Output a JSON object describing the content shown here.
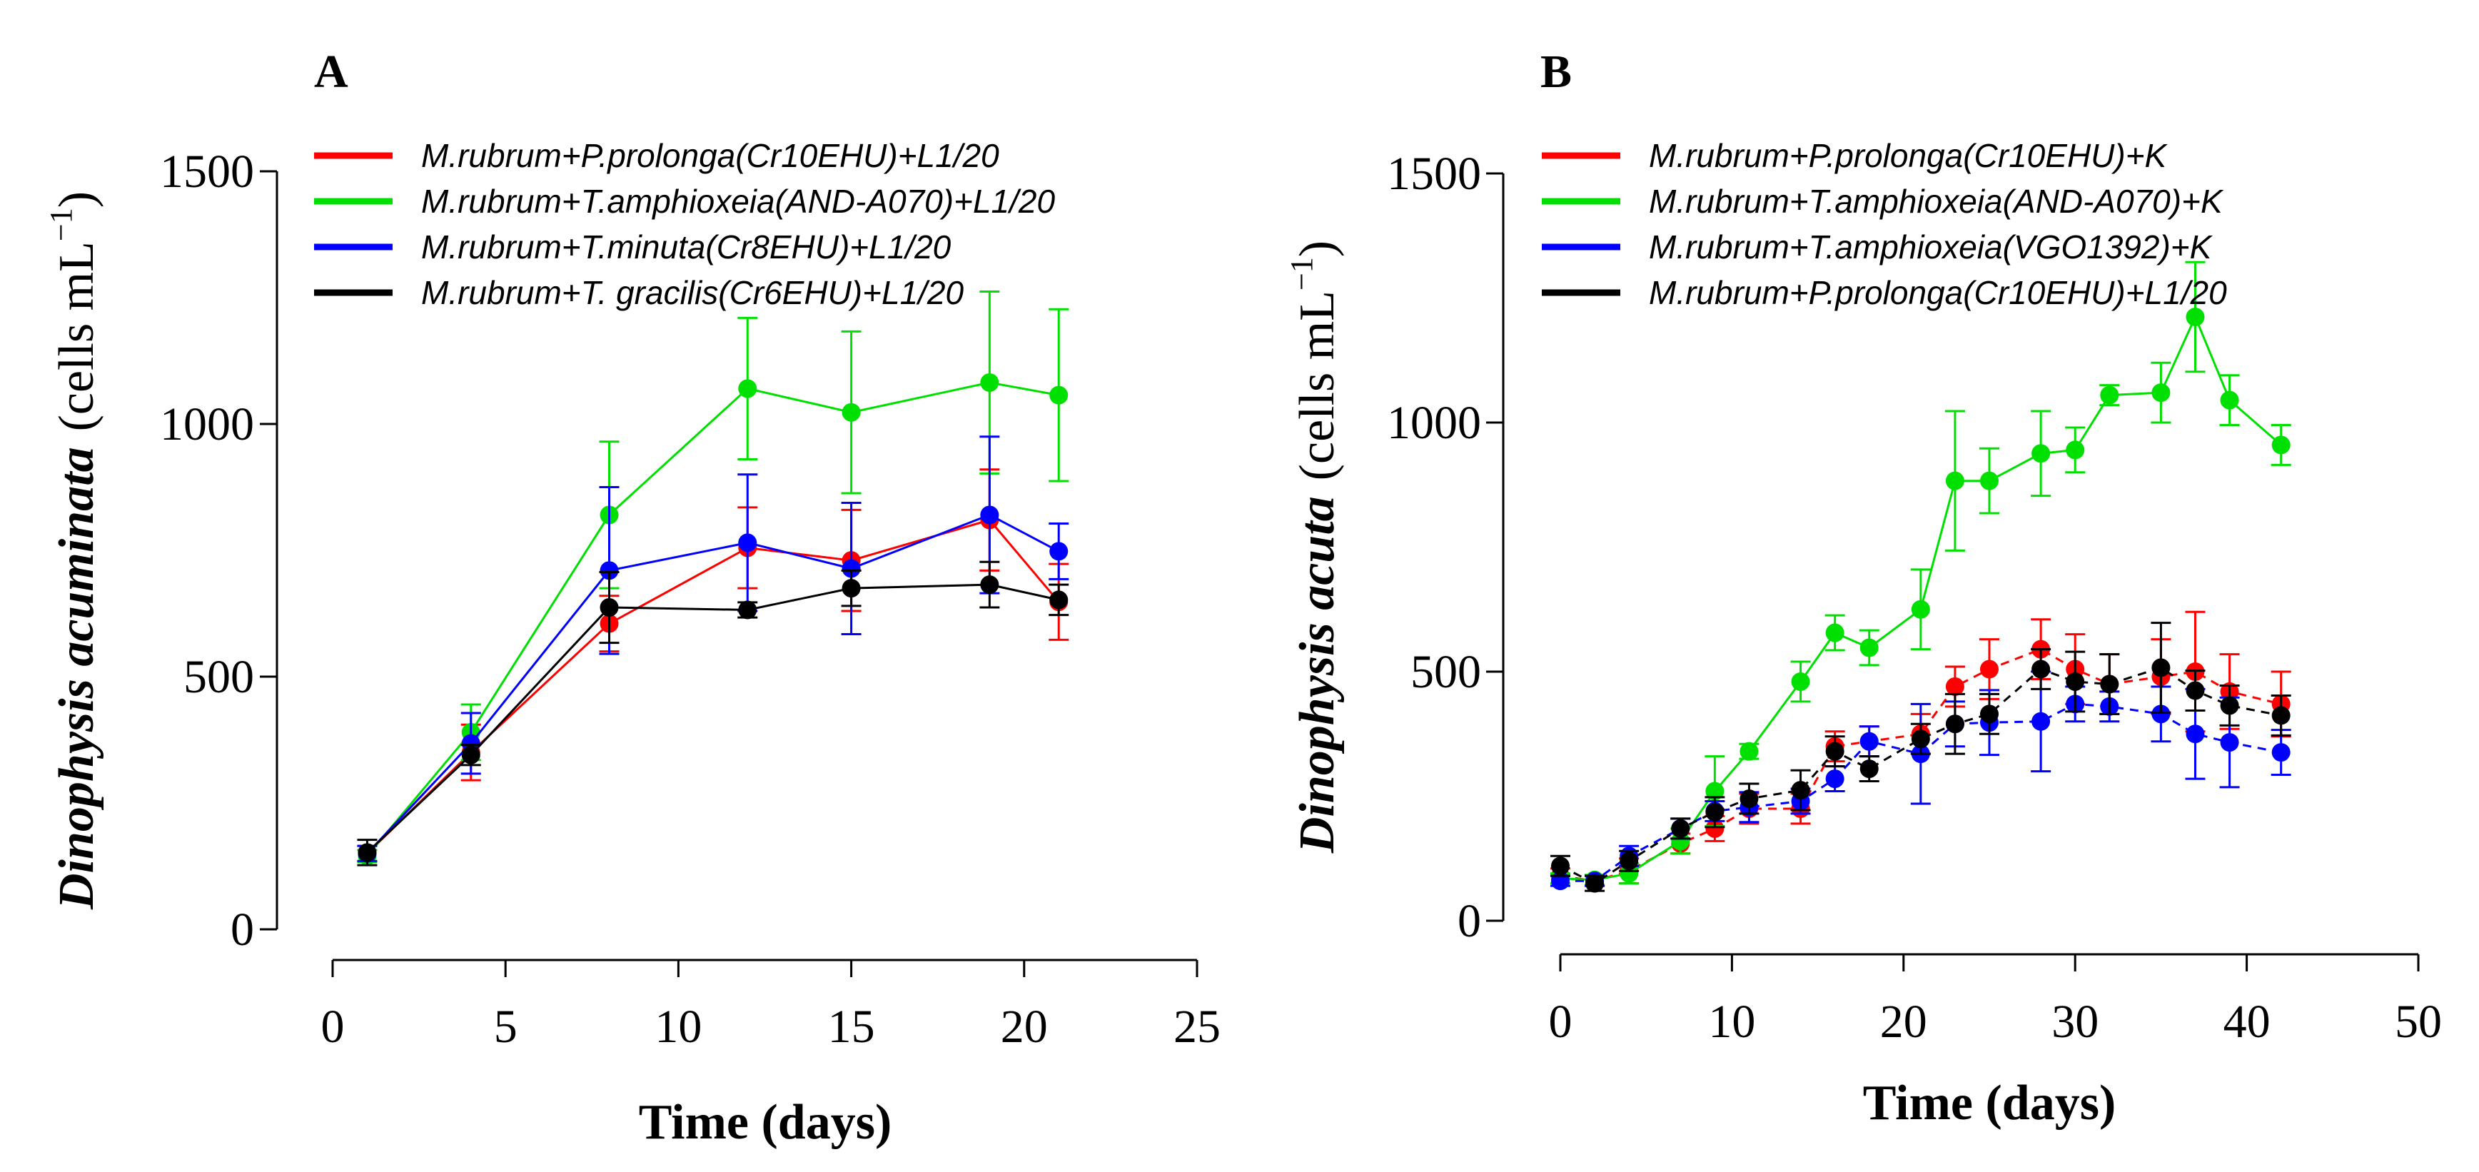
{
  "chart_data": [
    {
      "type": "line",
      "panel_label": "A",
      "title": "",
      "xlabel": "Time (days)",
      "ylabel": {
        "italic": "Dinophysis acuminata",
        "unit": "(cells  mL",
        "exponent": "−1",
        "close": ")"
      },
      "xlim": [
        0,
        25
      ],
      "ylim": [
        0,
        1500
      ],
      "x_ticks": [
        0,
        5,
        10,
        15,
        20,
        25
      ],
      "y_ticks": [
        0,
        500,
        1000,
        1500
      ],
      "legend_position": "top-left",
      "series": [
        {
          "name": "M.rubrum+P.prolonga(Cr10EHU)+L1/20",
          "color": "#ff0000",
          "line_style": "solid",
          "x": [
            1,
            4,
            8,
            12,
            15,
            19,
            21
          ],
          "y": [
            150,
            350,
            605,
            755,
            730,
            810,
            648
          ],
          "err": [
            15,
            55,
            55,
            80,
            100,
            100,
            75
          ]
        },
        {
          "name": "M.rubrum+T.amphioxeia(AND-A070)+L1/20",
          "color": "#00e000",
          "line_style": "solid",
          "x": [
            1,
            4,
            8,
            12,
            15,
            19,
            21
          ],
          "y": [
            145,
            390,
            820,
            1070,
            1023,
            1082,
            1057
          ],
          "err": [
            12,
            55,
            145,
            140,
            160,
            180,
            170
          ]
        },
        {
          "name": "M.rubrum+T.minuta(Cr8EHU)+L1/20",
          "color": "#0000ff",
          "line_style": "solid",
          "x": [
            1,
            4,
            8,
            12,
            15,
            19,
            21
          ],
          "y": [
            150,
            368,
            710,
            765,
            714,
            820,
            748
          ],
          "err": [
            15,
            60,
            165,
            135,
            130,
            155,
            55
          ]
        },
        {
          "name": "M.rubrum+T. gracilis(Cr6EHU)+L1/20",
          "color": "#000000",
          "line_style": "solid",
          "x": [
            1,
            4,
            8,
            12,
            15,
            19,
            21
          ],
          "y": [
            152,
            345,
            637,
            632,
            675,
            682,
            652
          ],
          "err": [
            25,
            20,
            70,
            15,
            35,
            45,
            30
          ]
        }
      ]
    },
    {
      "type": "line",
      "panel_label": "B",
      "title": "",
      "xlabel": "Time (days)",
      "ylabel": {
        "italic": "Dinophysis acuta",
        "unit": "(cells  mL",
        "exponent": "−1",
        "close": ")"
      },
      "xlim": [
        0,
        50
      ],
      "ylim": [
        0,
        1500
      ],
      "x_ticks": [
        0,
        10,
        20,
        30,
        40,
        50
      ],
      "y_ticks": [
        0,
        500,
        1000,
        1500
      ],
      "legend_position": "top-left",
      "series": [
        {
          "name": "M.rubrum+P.prolonga(Cr10EHU)+K",
          "color": "#ff0000",
          "line_style": "dashed",
          "x": [
            0,
            2,
            4,
            7,
            9,
            11,
            14,
            16,
            18,
            21,
            23,
            25,
            28,
            30,
            32,
            35,
            37,
            39,
            42
          ],
          "y": [
            90,
            80,
            100,
            155,
            185,
            225,
            225,
            350,
            360,
            375,
            470,
            505,
            545,
            505,
            475,
            490,
            500,
            460,
            435
          ],
          "err": [
            15,
            10,
            25,
            20,
            25,
            30,
            30,
            30,
            30,
            40,
            40,
            60,
            60,
            70,
            60,
            75,
            120,
            75,
            65
          ]
        },
        {
          "name": "M.rubrum+T.amphioxeia(AND-A070)+K",
          "color": "#00e000",
          "line_style": "solid",
          "x": [
            0,
            2,
            4,
            7,
            9,
            11,
            14,
            16,
            18,
            21,
            23,
            25,
            28,
            30,
            32,
            35,
            37,
            39,
            42
          ],
          "y": [
            85,
            82,
            95,
            160,
            260,
            340,
            480,
            578,
            548,
            625,
            883,
            883,
            938,
            945,
            1055,
            1060,
            1212,
            1045,
            955
          ],
          "err": [
            10,
            10,
            20,
            25,
            70,
            15,
            40,
            35,
            35,
            80,
            140,
            65,
            85,
            45,
            20,
            60,
            110,
            50,
            40
          ]
        },
        {
          "name": "M.rubrum+T.amphioxeia(VGO1392)+K",
          "color": "#0000ff",
          "line_style": "dashed",
          "x": [
            0,
            2,
            4,
            7,
            9,
            11,
            14,
            16,
            18,
            21,
            23,
            25,
            28,
            30,
            32,
            35,
            37,
            39,
            42
          ],
          "y": [
            80,
            80,
            130,
            185,
            220,
            228,
            240,
            285,
            360,
            335,
            395,
            398,
            400,
            435,
            430,
            415,
            375,
            358,
            338
          ],
          "err": [
            10,
            10,
            20,
            20,
            20,
            30,
            25,
            25,
            30,
            100,
            45,
            65,
            100,
            35,
            30,
            55,
            90,
            90,
            45
          ]
        },
        {
          "name": "M.rubrum+P.prolonga(Cr10EHU)+L1/20",
          "color": "#000000",
          "line_style": "dashed",
          "x": [
            0,
            2,
            4,
            7,
            9,
            11,
            14,
            16,
            18,
            21,
            23,
            25,
            28,
            30,
            32,
            35,
            37,
            39,
            42
          ],
          "y": [
            110,
            75,
            120,
            185,
            218,
            245,
            262,
            340,
            305,
            365,
            395,
            415,
            505,
            480,
            475,
            508,
            462,
            432,
            412
          ],
          "err": [
            20,
            15,
            20,
            20,
            30,
            30,
            40,
            30,
            25,
            30,
            60,
            40,
            40,
            60,
            60,
            90,
            40,
            40,
            40
          ]
        }
      ]
    }
  ]
}
